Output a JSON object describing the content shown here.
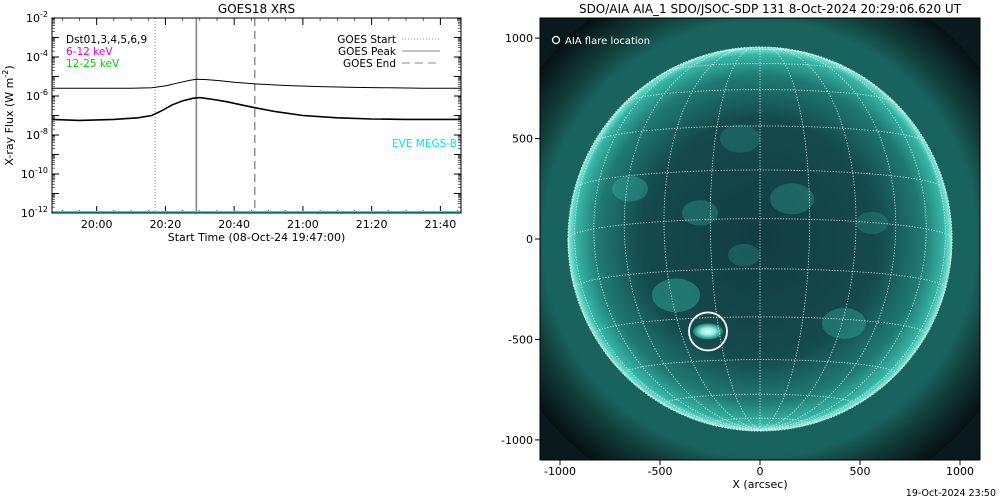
{
  "chart_data": [
    {
      "type": "line",
      "title": "GOES18 XRS",
      "xlabel": "Start Time (08-Oct-24 19:47:00)",
      "ylabel": "X-ray Flux (W m",
      "ylabel_sup": "-2",
      "ylabel_close": ")",
      "y_scale": "log",
      "ylim_exp": [
        -12,
        -2
      ],
      "y_tick_base": "10",
      "y_tick_exps": [
        "-12",
        "-10",
        "-8",
        "-6",
        "-4",
        "-2"
      ],
      "xlim": [
        "19:47",
        "21:46"
      ],
      "x_ticks": [
        "20:00",
        "20:20",
        "20:40",
        "21:00",
        "21:20",
        "21:40"
      ],
      "legend_left": [
        {
          "label": "Dst01,3,4,5,6,9",
          "color": "#000000"
        },
        {
          "label": "6-12 keV",
          "color": "#dd00dd"
        },
        {
          "label": "12-25 keV",
          "color": "#00cc00"
        }
      ],
      "legend_right": [
        {
          "label": "GOES Start",
          "style": "dotted"
        },
        {
          "label": "GOES Peak",
          "style": "solid"
        },
        {
          "label": "GOES End",
          "style": "dashed"
        }
      ],
      "instrument_label": "EVE MEGS-B",
      "instrument_color": "#00e5ee",
      "markers": {
        "start": "20:17",
        "peak": "20:29",
        "end": "20:46"
      },
      "series": [
        {
          "name": "Dst01,3,4,5,6,9 long",
          "color": "#000000",
          "x": [
            "19:47",
            "20:00",
            "20:10",
            "20:16",
            "20:20",
            "20:24",
            "20:27",
            "20:29",
            "20:32",
            "20:36",
            "20:40",
            "20:46",
            "20:55",
            "21:05",
            "21:15",
            "21:25",
            "21:35",
            "21:46"
          ],
          "log_flux": [
            -5.6,
            -5.6,
            -5.6,
            -5.58,
            -5.48,
            -5.32,
            -5.2,
            -5.14,
            -5.16,
            -5.22,
            -5.3,
            -5.38,
            -5.46,
            -5.52,
            -5.56,
            -5.58,
            -5.6,
            -5.6
          ]
        },
        {
          "name": "Dst01,3,4,5,6,9 short",
          "color": "#000000",
          "x": [
            "19:47",
            "19:55",
            "20:05",
            "20:12",
            "20:16",
            "20:19",
            "20:22",
            "20:25",
            "20:28",
            "20:30",
            "20:34",
            "20:38",
            "20:42",
            "20:46",
            "20:52",
            "21:00",
            "21:10",
            "21:20",
            "21:30",
            "21:40",
            "21:46"
          ],
          "log_flux": [
            -7.2,
            -7.25,
            -7.2,
            -7.12,
            -7.0,
            -6.75,
            -6.45,
            -6.25,
            -6.12,
            -6.08,
            -6.18,
            -6.3,
            -6.45,
            -6.6,
            -6.8,
            -7.0,
            -7.12,
            -7.18,
            -7.2,
            -7.2,
            -7.2
          ]
        },
        {
          "name": "EVE MEGS-B",
          "color": "#00e5ee",
          "x": [
            "19:47",
            "21:46"
          ],
          "log_flux": [
            -11.95,
            -11.95
          ]
        }
      ]
    },
    {
      "type": "heatmap",
      "title": "SDO/AIA AIA_1 SDO/JSOC-SDP 131  8-Oct-2024 20:29:06.620 UT",
      "xlabel": "X (arcsec)",
      "x_ticks": [
        "-1000",
        "-500",
        "0",
        "500",
        "1000"
      ],
      "y_ticks": [
        "1000",
        "500",
        "0",
        "-500",
        "-1000"
      ],
      "x_tick_values": [
        -1000,
        -500,
        0,
        500,
        1000
      ],
      "y_tick_values": [
        1000,
        500,
        0,
        -500,
        -1000
      ],
      "xlim": [
        -1100,
        1100
      ],
      "ylim": [
        -1100,
        1100
      ],
      "legend": "AIA flare location",
      "flare_location": {
        "x": -260,
        "y": -460
      },
      "grid": "heliographic",
      "colormap_accent": "#2fc9b5",
      "footer_timestamp": "19-Oct-2024 23:50"
    }
  ]
}
